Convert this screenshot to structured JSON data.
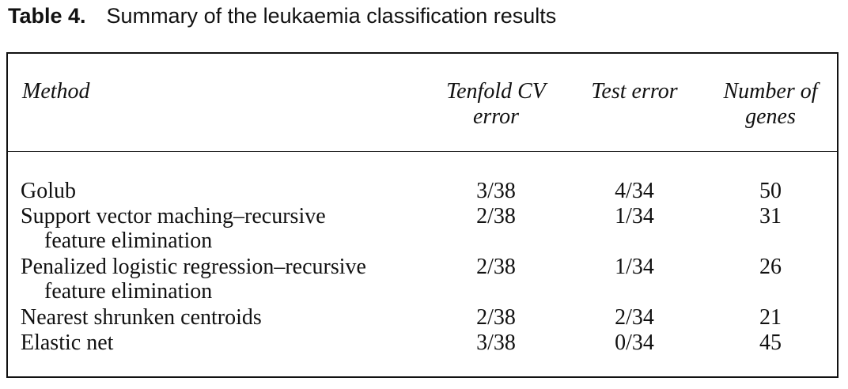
{
  "caption": {
    "label": "Table 4.",
    "title": "Summary of the leukaemia classification results"
  },
  "headers": {
    "method": "Method",
    "cv_line1": "Tenfold CV",
    "cv_line2": "error",
    "test": "Test error",
    "genes_line1": "Number of",
    "genes_line2": "genes"
  },
  "rows": [
    {
      "method_line1": "Golub",
      "method_line2": "",
      "cv": "3/38",
      "test": "4/34",
      "genes": "50"
    },
    {
      "method_line1": "Support vector maching–recursive",
      "method_line2": "feature elimination",
      "cv": "2/38",
      "test": "1/34",
      "genes": "31"
    },
    {
      "method_line1": "Penalized logistic regression–recursive",
      "method_line2": "feature elimination",
      "cv": "2/38",
      "test": "1/34",
      "genes": "26"
    },
    {
      "method_line1": "Nearest shrunken centroids",
      "method_line2": "",
      "cv": "2/38",
      "test": "2/34",
      "genes": "21"
    },
    {
      "method_line1": "Elastic net",
      "method_line2": "",
      "cv": "3/38",
      "test": "0/34",
      "genes": "45"
    }
  ]
}
